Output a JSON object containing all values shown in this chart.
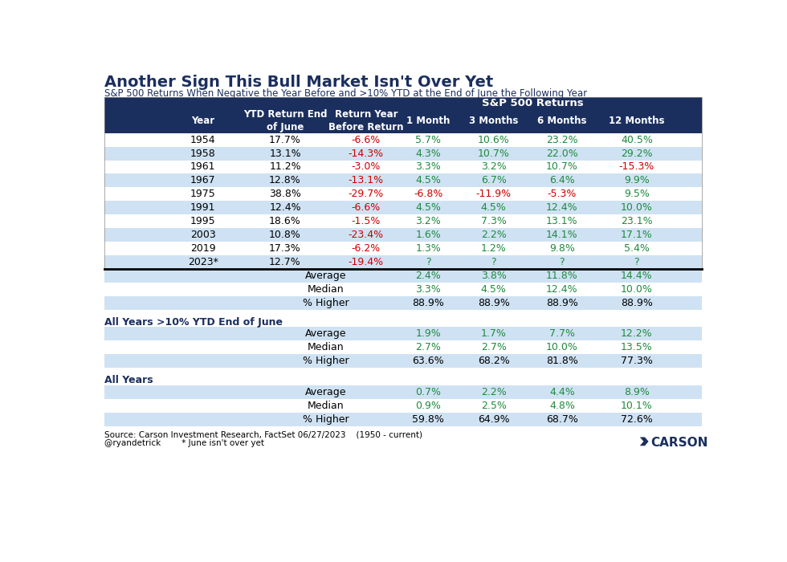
{
  "title": "Another Sign This Bull Market Isn't Over Yet",
  "subtitle": "S&P 500 Returns When Negative the Year Before and >10% YTD at the End of June the Following Year",
  "col_headers_row2": [
    "Year",
    "YTD Return End\nof June",
    "Return Year\nBefore Return",
    "1 Month",
    "3 Months",
    "6 Months",
    "12 Months"
  ],
  "data_rows": [
    [
      "1954",
      "17.7%",
      "-6.6%",
      "5.7%",
      "10.6%",
      "23.2%",
      "40.5%"
    ],
    [
      "1958",
      "13.1%",
      "-14.3%",
      "4.3%",
      "10.7%",
      "22.0%",
      "29.2%"
    ],
    [
      "1961",
      "11.2%",
      "-3.0%",
      "3.3%",
      "3.2%",
      "10.7%",
      "-15.3%"
    ],
    [
      "1967",
      "12.8%",
      "-13.1%",
      "4.5%",
      "6.7%",
      "6.4%",
      "9.9%"
    ],
    [
      "1975",
      "38.8%",
      "-29.7%",
      "-6.8%",
      "-11.9%",
      "-5.3%",
      "9.5%"
    ],
    [
      "1991",
      "12.4%",
      "-6.6%",
      "4.5%",
      "4.5%",
      "12.4%",
      "10.0%"
    ],
    [
      "1995",
      "18.6%",
      "-1.5%",
      "3.2%",
      "7.3%",
      "13.1%",
      "23.1%"
    ],
    [
      "2003",
      "10.8%",
      "-23.4%",
      "1.6%",
      "2.2%",
      "14.1%",
      "17.1%"
    ],
    [
      "2019",
      "17.3%",
      "-6.2%",
      "1.3%",
      "1.2%",
      "9.8%",
      "5.4%"
    ],
    [
      "2023*",
      "12.7%",
      "-19.4%",
      "?",
      "?",
      "?",
      "?"
    ]
  ],
  "sum1_rows": [
    [
      "Average",
      "2.4%",
      "3.8%",
      "11.8%",
      "14.4%"
    ],
    [
      "Median",
      "3.3%",
      "4.5%",
      "12.4%",
      "10.0%"
    ],
    [
      "% Higher",
      "88.9%",
      "88.9%",
      "88.9%",
      "88.9%"
    ]
  ],
  "section2_title": "All Years >10% YTD End of June",
  "sum2_rows": [
    [
      "Average",
      "1.9%",
      "1.7%",
      "7.7%",
      "12.2%"
    ],
    [
      "Median",
      "2.7%",
      "2.7%",
      "10.0%",
      "13.5%"
    ],
    [
      "% Higher",
      "63.6%",
      "68.2%",
      "81.8%",
      "77.3%"
    ]
  ],
  "section3_title": "All Years",
  "sum3_rows": [
    [
      "Average",
      "0.7%",
      "2.2%",
      "4.4%",
      "8.9%"
    ],
    [
      "Median",
      "0.9%",
      "2.5%",
      "4.8%",
      "10.1%"
    ],
    [
      "% Higher",
      "59.8%",
      "64.9%",
      "68.7%",
      "72.6%"
    ]
  ],
  "footer1": "Source: Carson Investment Research, FactSet 06/27/2023    (1950 - current)",
  "footer2": "@ryandetrick        * June isn't over yet",
  "header_bg": "#1b2f5e",
  "row_bg_white": "#ffffff",
  "row_bg_blue": "#cfe2f3",
  "summary_bg_blue": "#cfe2f3",
  "green_color": "#1e8a3e",
  "red_color": "#cc0000",
  "black_color": "#000000",
  "blue_dark": "#1b2f5e",
  "carson_blue": "#1b2f5e"
}
